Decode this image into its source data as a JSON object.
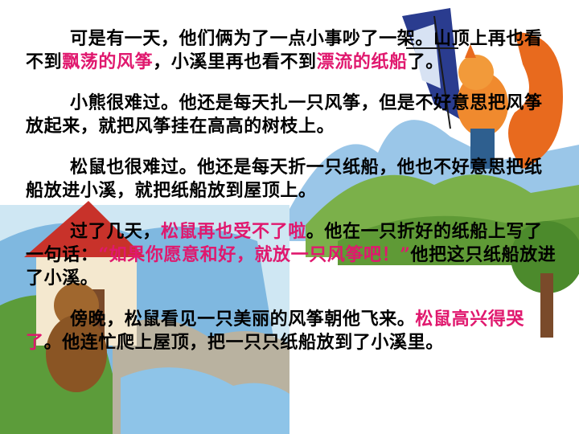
{
  "colors": {
    "highlight": "#e0186e",
    "text": "#000000",
    "background": "#ffffff"
  },
  "illustration": {
    "description_icon": "storybook-illustration-bear-squirrel-kite"
  },
  "paragraphs": [
    {
      "parts": [
        {
          "t": "可是有一天，他们俩为了一点小事吵了一架。山顶上再也看不到",
          "hl": false
        },
        {
          "t": "飘荡的风筝",
          "hl": true
        },
        {
          "t": "，小溪里再也看不到",
          "hl": false
        },
        {
          "t": "漂流的纸船",
          "hl": true
        },
        {
          "t": "了。",
          "hl": false
        }
      ]
    },
    {
      "parts": [
        {
          "t": "小熊很难过。他还是每天扎一只风筝，但是不好意思把风筝放起来，就把风筝挂在高高的树枝上。",
          "hl": false
        }
      ]
    },
    {
      "parts": [
        {
          "t": "松鼠也很难过。他还是每天折一只纸船，他也不好意思把纸船放进小溪，就把纸船放到屋顶上。",
          "hl": false
        }
      ]
    },
    {
      "parts": [
        {
          "t": "过了几天，",
          "hl": false
        },
        {
          "t": "松鼠再也受不了啦",
          "hl": true
        },
        {
          "t": "。他在一只折好的纸船上写了一句话：",
          "hl": false
        },
        {
          "t": "“如果你愿意和好，就放一只风筝吧！”",
          "hl": true
        },
        {
          "t": "他把这只纸船放进了小溪。",
          "hl": false
        }
      ]
    },
    {
      "parts": [
        {
          "t": "傍晚，松鼠看见一只美丽的风筝朝他飞来。",
          "hl": false
        },
        {
          "t": "松鼠高兴得哭了",
          "hl": true
        },
        {
          "t": "。他连忙爬上屋顶，把一只只纸船放到了小溪里。",
          "hl": false
        }
      ]
    }
  ]
}
